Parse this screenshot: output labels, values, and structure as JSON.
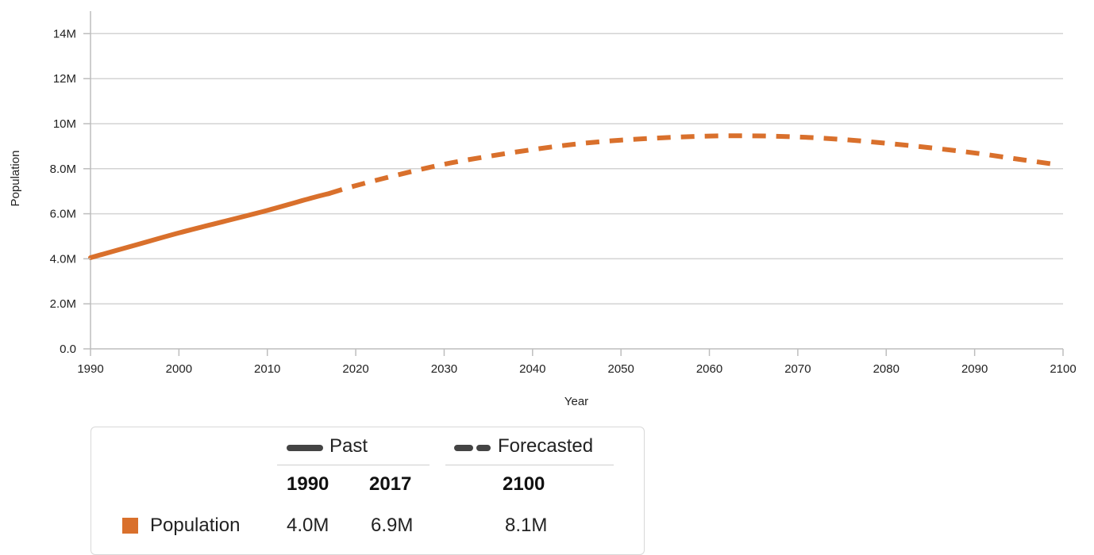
{
  "colors": {
    "series": "#d9702c",
    "grid": "#d3d3d3",
    "axis": "#bdbdbd",
    "legend_line": "#444444"
  },
  "chart_data": {
    "type": "line",
    "xlabel": "Year",
    "ylabel": "Population",
    "xlim": [
      1990,
      2100
    ],
    "ylim": [
      0,
      15000000
    ],
    "x_ticks": [
      1990,
      2000,
      2010,
      2020,
      2030,
      2040,
      2050,
      2060,
      2070,
      2080,
      2090,
      2100
    ],
    "x_tick_labels": [
      "1990",
      "2000",
      "2010",
      "2020",
      "2030",
      "2040",
      "2050",
      "2060",
      "2070",
      "2080",
      "2090",
      "2100"
    ],
    "y_ticks": [
      0,
      2000000,
      4000000,
      6000000,
      8000000,
      10000000,
      12000000,
      14000000
    ],
    "y_tick_labels": [
      "0.0",
      "2.0M",
      "4.0M",
      "6.0M",
      "8.0M",
      "10M",
      "12M",
      "14M"
    ],
    "grid": true,
    "series": [
      {
        "name": "Population",
        "color": "#d9702c",
        "past": {
          "x": [
            1990,
            1995,
            2000,
            2005,
            2010,
            2015,
            2017
          ],
          "y": [
            4050000,
            4600000,
            5150000,
            5650000,
            6150000,
            6700000,
            6900000
          ]
        },
        "forecast": {
          "x": [
            2017,
            2020,
            2025,
            2030,
            2035,
            2040,
            2045,
            2050,
            2055,
            2060,
            2065,
            2070,
            2075,
            2080,
            2085,
            2090,
            2095,
            2099
          ],
          "y": [
            6900000,
            7250000,
            7750000,
            8200000,
            8550000,
            8850000,
            9100000,
            9270000,
            9380000,
            9450000,
            9460000,
            9410000,
            9300000,
            9130000,
            8930000,
            8700000,
            8420000,
            8200000
          ]
        }
      }
    ]
  },
  "legend": {
    "past_label": "Past",
    "forecast_label": "Forecasted",
    "years": {
      "start": "1990",
      "mid": "2017",
      "end": "2100"
    },
    "rows": [
      {
        "name": "Population",
        "start": "4.0M",
        "mid": "6.9M",
        "end": "8.1M"
      }
    ]
  }
}
